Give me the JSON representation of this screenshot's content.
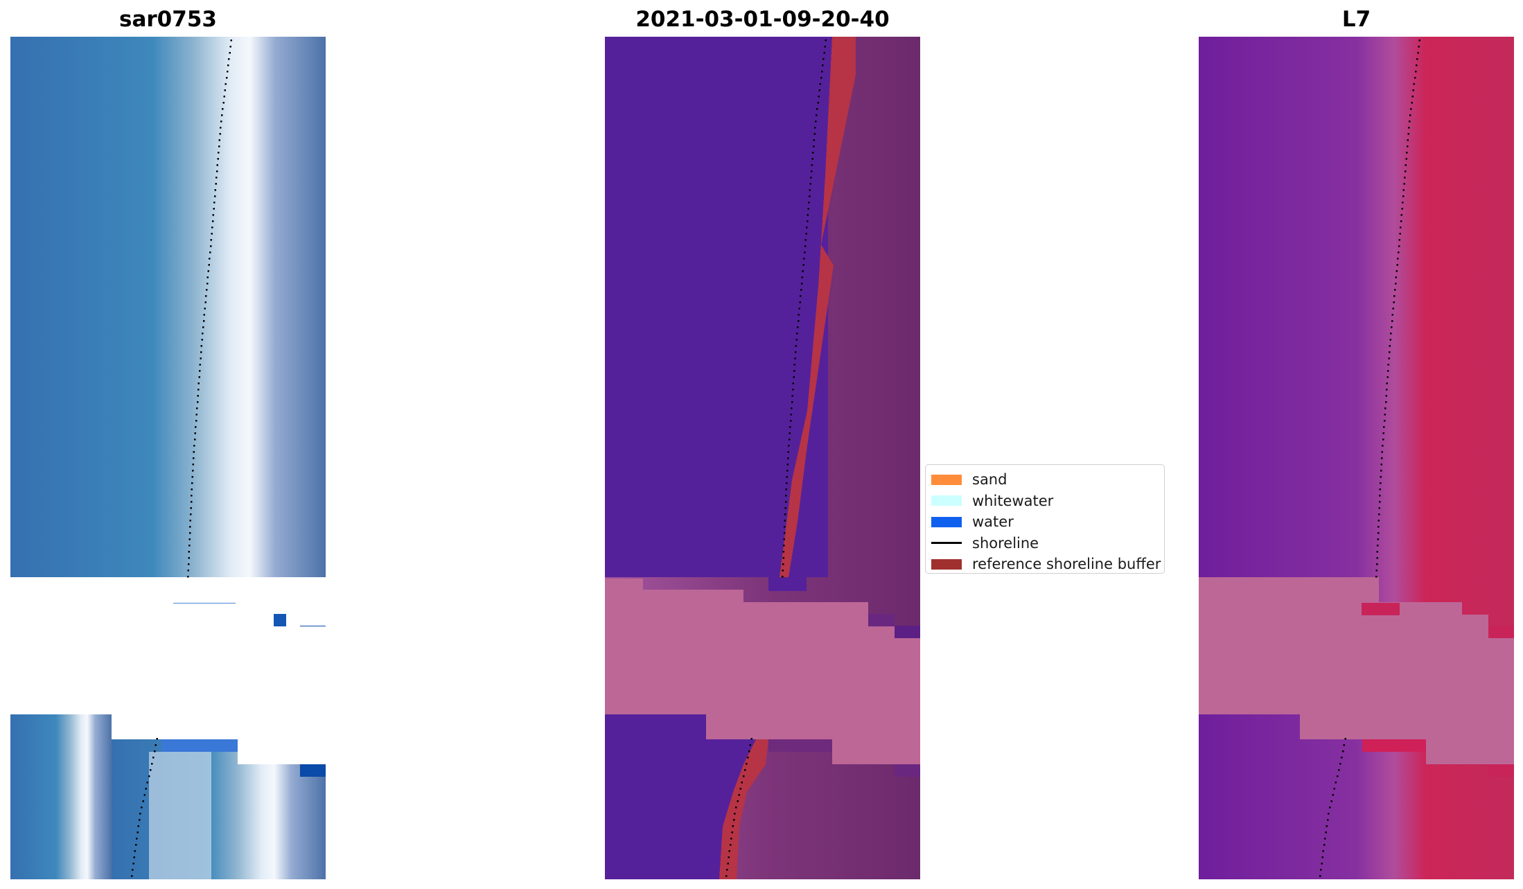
{
  "panels": [
    {
      "title": "sar0753"
    },
    {
      "title": "2021-03-01-09-20-40"
    },
    {
      "title": "L7"
    }
  ],
  "legend": {
    "items": [
      {
        "label": "sand",
        "kind": "patch",
        "color": "#ff8c3a"
      },
      {
        "label": "whitewater",
        "kind": "patch",
        "color": "#ccffff"
      },
      {
        "label": "water",
        "kind": "patch",
        "color": "#1060f0"
      },
      {
        "label": "shoreline",
        "kind": "line",
        "color": "#000000"
      },
      {
        "label": "reference shoreline buffer",
        "kind": "patch",
        "color": "#a0302e"
      }
    ]
  },
  "colors": {
    "rgb_sea": "#3a78b4",
    "rgb_swash": "#e8eef8",
    "classified_water": "#55219a",
    "reference_buffer": "#b63446",
    "nodata_pink": "#bd6797",
    "nir_purple": "#7a2aa0",
    "nir_red": "#cc1f4e"
  }
}
